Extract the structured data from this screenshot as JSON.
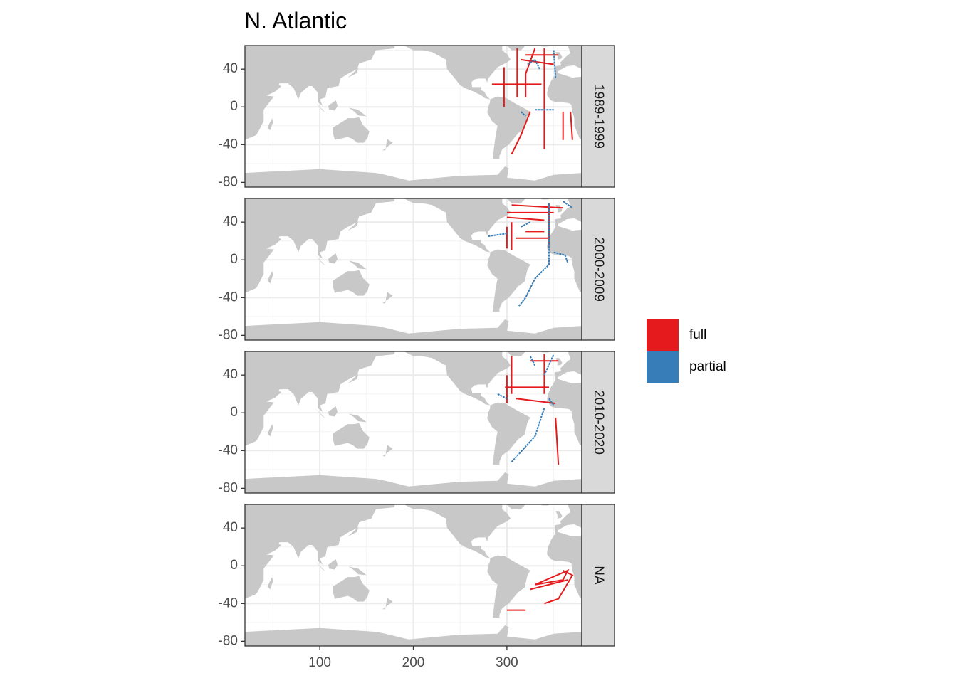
{
  "chart_data": {
    "type": "map",
    "title": "N. Atlantic",
    "xlim": [
      20,
      380
    ],
    "ylim": [
      -85,
      65
    ],
    "xticks": [
      100,
      200,
      300
    ],
    "yticks": [
      -80,
      -40,
      0,
      40
    ],
    "grid": true,
    "legend_position": "right",
    "series": [
      {
        "name": "full",
        "color": "#e41a1c"
      },
      {
        "name": "partial",
        "color": "#377eb8"
      }
    ],
    "facets": [
      {
        "label": "1989-1999",
        "series": [
          {
            "x": [
              297,
              297,
              null,
              284,
              337,
              null,
              311,
              311,
              null,
              340,
              340,
              null,
              330,
              320,
              320,
              null,
              325,
              315,
              305,
              null,
              360,
              360,
              null,
              368,
              370,
              null,
              320,
              355,
              null,
              315,
              350
            ],
            "values": [
              42,
              0,
              null,
              24,
              24,
              null,
              62,
              10,
              null,
              62,
              -45,
              null,
              62,
              35,
              10,
              null,
              -5,
              -30,
              -50,
              null,
              -5,
              -35,
              null,
              -5,
              -35,
              null,
              55,
              55,
              null,
              50,
              45
            ]
          },
          {
            "x": [
              322,
              330,
              335,
              null,
              350,
              352,
              null,
              315,
              320,
              null,
              330,
              350
            ],
            "values": [
              45,
              50,
              40,
              null,
              60,
              30,
              null,
              -5,
              -10,
              null,
              -3,
              -3
            ]
          }
        ]
      },
      {
        "label": "2000-2009",
        "series": [
          {
            "x": [
              305,
              360,
              null,
              300,
              350,
              null,
              300,
              340,
              null,
              305,
              305,
              null,
              300,
              300,
              null,
              310,
              345,
              null,
              320,
              340,
              null,
              345,
              345
            ],
            "values": [
              58,
              55,
              null,
              50,
              50,
              null,
              45,
              42,
              null,
              40,
              10,
              null,
              35,
              12,
              null,
              23,
              23,
              null,
              30,
              30,
              null,
              60,
              15
            ]
          },
          {
            "x": [
              345,
              345,
              330,
              320,
              312,
              null,
              280,
              300,
              null,
              350,
              362,
              365,
              null,
              360,
              370,
              null,
              315,
              325
            ],
            "values": [
              60,
              -5,
              -20,
              -40,
              -50,
              null,
              25,
              28,
              null,
              8,
              5,
              -3,
              null,
              62,
              55,
              null,
              35,
              40
            ]
          }
        ]
      },
      {
        "label": "2010-2020",
        "series": [
          {
            "x": [
              305,
              305,
              null,
              300,
              300,
              null,
              298,
              345,
              null,
              340,
              340,
              null,
              325,
              355,
              null,
              310,
              352,
              null,
              352,
              355
            ],
            "values": [
              60,
              20,
              null,
              40,
              10,
              null,
              27,
              27,
              null,
              62,
              20,
              null,
              55,
              55,
              null,
              15,
              10,
              null,
              -5,
              -55
            ]
          },
          {
            "x": [
              290,
              300,
              null,
              340,
              330,
              305,
              null,
              330,
              325,
              null,
              340,
              350,
              null,
              345,
              350
            ],
            "values": [
              20,
              15,
              null,
              5,
              -25,
              -52,
              null,
              50,
              60,
              null,
              40,
              62,
              null,
              15,
              8
            ]
          }
        ]
      },
      {
        "label": "NA",
        "series": [
          {
            "x": [
              330,
              365,
              360,
              330,
              null,
              325,
              365,
              null,
              360,
              370,
              355,
              340,
              null,
              300,
              320
            ],
            "values": [
              -20,
              -5,
              -15,
              -20,
              null,
              -25,
              -15,
              null,
              -5,
              -10,
              -35,
              -40,
              null,
              -47,
              -47
            ]
          },
          {
            "x": [],
            "values": []
          }
        ]
      }
    ]
  }
}
